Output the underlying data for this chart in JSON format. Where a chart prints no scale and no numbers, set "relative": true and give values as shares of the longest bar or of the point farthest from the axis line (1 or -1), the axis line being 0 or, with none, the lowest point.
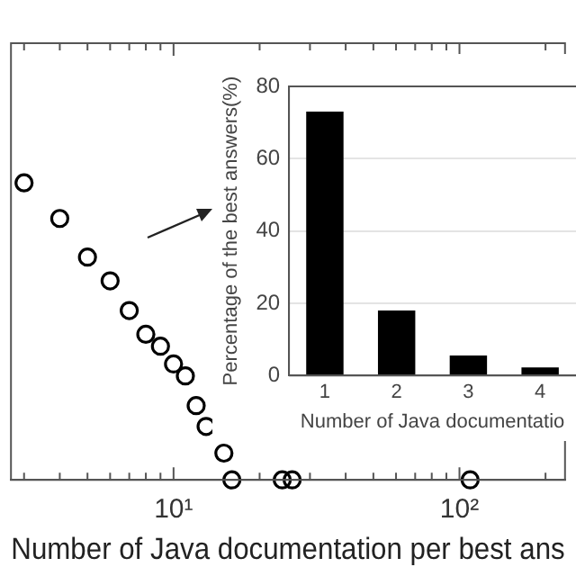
{
  "chart_data": [
    {
      "type": "scatter",
      "xlabel": "Number of Java documentation per best ans",
      "x": [
        3,
        4,
        5,
        6,
        7,
        8,
        9,
        10,
        11,
        12,
        13,
        15,
        16,
        24,
        26,
        109
      ],
      "values": [
        1,
        0.88,
        0.75,
        0.67,
        0.57,
        0.49,
        0.45,
        0.39,
        0.35,
        0.25,
        0.18,
        0.09,
        0,
        0,
        0,
        0
      ],
      "color": "#000000",
      "marker": "circle",
      "relative": true,
      "log": "x",
      "xlim": [
        2.7,
        234
      ],
      "xticks": [
        {
          "value": 3,
          "label": null
        },
        {
          "value": 4,
          "label": null
        },
        {
          "value": 5,
          "label": null
        },
        {
          "value": 6,
          "label": null
        },
        {
          "value": 7,
          "label": null
        },
        {
          "value": 8,
          "label": null
        },
        {
          "value": 9,
          "label": null
        },
        {
          "value": 10,
          "label": "10¹"
        },
        {
          "value": 20,
          "label": null
        },
        {
          "value": 30,
          "label": null
        },
        {
          "value": 40,
          "label": null
        },
        {
          "value": 50,
          "label": null
        },
        {
          "value": 60,
          "label": null
        },
        {
          "value": 70,
          "label": null
        },
        {
          "value": 80,
          "label": null
        },
        {
          "value": 90,
          "label": null
        },
        {
          "value": 100,
          "label": "10²"
        },
        {
          "value": 200,
          "label": null
        }
      ]
    },
    {
      "type": "bar",
      "categories": [
        "1",
        "2",
        "3",
        "4"
      ],
      "values": [
        73,
        18,
        5.5,
        2.2
      ],
      "color": "#000000",
      "xlabel": "Number of Java documentatio",
      "ylabel": "Percentage of the best answers(%)",
      "ylim": [
        0,
        80
      ],
      "yticks": [
        0,
        20,
        40,
        60,
        80
      ],
      "grid": "y"
    }
  ]
}
